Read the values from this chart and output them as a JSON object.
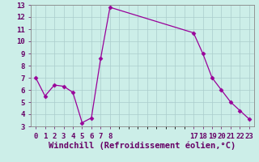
{
  "x": [
    0,
    1,
    2,
    3,
    4,
    5,
    6,
    7,
    8,
    17,
    18,
    19,
    20,
    21,
    22,
    23
  ],
  "y": [
    7.0,
    5.5,
    6.4,
    6.3,
    5.8,
    3.3,
    3.7,
    8.6,
    12.8,
    10.7,
    9.0,
    7.0,
    6.0,
    5.0,
    4.3,
    3.6
  ],
  "line_color": "#990099",
  "marker": "D",
  "marker_size": 2.5,
  "bg_color": "#cceee8",
  "grid_color": "#aacccc",
  "xlabel": "Windchill (Refroidissement éolien,°C)",
  "ylim": [
    3,
    13
  ],
  "yticks": [
    3,
    4,
    5,
    6,
    7,
    8,
    9,
    10,
    11,
    12,
    13
  ],
  "xlim": [
    -0.5,
    23.5
  ],
  "tick_label_fontsize": 6.5,
  "xlabel_fontsize": 7.5,
  "shown_xticks": [
    0,
    1,
    2,
    3,
    4,
    5,
    6,
    7,
    8,
    17,
    18,
    19,
    20,
    21,
    22,
    23
  ]
}
